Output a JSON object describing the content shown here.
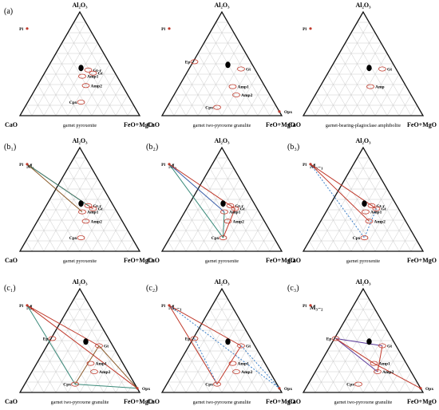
{
  "figure": {
    "vertex_top": "Al₂O₃",
    "vertex_left": "CaO",
    "vertex_right": "FeO+MgO",
    "panels": [
      {
        "id": "a1",
        "row_label": "(a)",
        "subtitle": "",
        "title": "garnet pyroxenite",
        "points": [
          {
            "label": "Pl",
            "u": 0.06,
            "v": 0.84,
            "ell": false
          },
          {
            "label": "Gt-r",
            "u": 0.57,
            "v": 0.44,
            "ell": true
          },
          {
            "label": "Gt",
            "u": 0.61,
            "v": 0.41,
            "ell": true
          },
          {
            "label": "Amp1",
            "u": 0.52,
            "v": 0.38,
            "ell": true
          },
          {
            "label": "Amp2",
            "u": 0.55,
            "v": 0.29,
            "ell": true
          },
          {
            "label": "Cpx",
            "u": 0.51,
            "v": 0.13,
            "ell": true
          }
        ],
        "black_dot": {
          "u": 0.51,
          "v": 0.46
        },
        "lines": []
      },
      {
        "id": "a2",
        "row_label": "",
        "subtitle": "",
        "title": "garnet two-pyroxene granulite",
        "points": [
          {
            "label": "Pl",
            "u": 0.06,
            "v": 0.84,
            "ell": false
          },
          {
            "label": "Ep",
            "u": 0.27,
            "v": 0.52,
            "ell": true
          },
          {
            "label": "Gt",
            "u": 0.66,
            "v": 0.45,
            "ell": true
          },
          {
            "label": "Amp1",
            "u": 0.59,
            "v": 0.28,
            "ell": true
          },
          {
            "label": "Amp2",
            "u": 0.62,
            "v": 0.2,
            "ell": true
          },
          {
            "label": "Cpx",
            "u": 0.46,
            "v": 0.08,
            "ell": true
          },
          {
            "label": "Opx",
            "u": 0.98,
            "v": 0.04,
            "ell": false
          }
        ],
        "black_dot": {
          "u": 0.55,
          "v": 0.49
        },
        "lines": []
      },
      {
        "id": "a3",
        "row_label": "",
        "subtitle": "",
        "title": "garnet-bearing-plagioclase amphibolite",
        "points": [
          {
            "label": "Pl",
            "u": 0.06,
            "v": 0.84,
            "ell": false
          },
          {
            "label": "Gt",
            "u": 0.66,
            "v": 0.45,
            "ell": true
          },
          {
            "label": "Amp",
            "u": 0.56,
            "v": 0.28,
            "ell": true
          }
        ],
        "black_dot": {
          "u": 0.55,
          "v": 0.46
        },
        "lines": []
      },
      {
        "id": "b1",
        "row_label": "(b₁)",
        "subtitle": "M₁",
        "title": "garnet pyroxenite",
        "points": [
          {
            "label": "Pl",
            "u": 0.06,
            "v": 0.84,
            "ell": false
          },
          {
            "label": "Gt-r",
            "u": 0.57,
            "v": 0.44,
            "ell": true
          },
          {
            "label": "Gt",
            "u": 0.61,
            "v": 0.41,
            "ell": true
          },
          {
            "label": "Amp1",
            "u": 0.52,
            "v": 0.38,
            "ell": true
          },
          {
            "label": "Amp2",
            "u": 0.55,
            "v": 0.29,
            "ell": true
          },
          {
            "label": "Cpx",
            "u": 0.51,
            "v": 0.13,
            "ell": true
          }
        ],
        "black_dot": {
          "u": 0.51,
          "v": 0.46
        },
        "lines": [
          {
            "from": "Pl",
            "to": "Gt",
            "color": "#c0392b",
            "dash": false
          },
          {
            "from": "Pl",
            "to": "Gt-r",
            "color": "#3a8a7a",
            "dash": false
          },
          {
            "from": "Pl",
            "to": "Amp1",
            "color": "#8a5a2a",
            "dash": false
          }
        ]
      },
      {
        "id": "b2",
        "row_label": "(b₂)",
        "subtitle": "M₂",
        "title": "garnet pyroxenite",
        "points": [
          {
            "label": "Pl",
            "u": 0.06,
            "v": 0.84,
            "ell": false
          },
          {
            "label": "Gt-r",
            "u": 0.57,
            "v": 0.44,
            "ell": true
          },
          {
            "label": "Gt",
            "u": 0.61,
            "v": 0.41,
            "ell": true
          },
          {
            "label": "Amp1",
            "u": 0.52,
            "v": 0.38,
            "ell": true
          },
          {
            "label": "Amp2",
            "u": 0.55,
            "v": 0.29,
            "ell": true
          },
          {
            "label": "Cpx",
            "u": 0.51,
            "v": 0.13,
            "ell": true
          }
        ],
        "black_dot": {
          "u": 0.51,
          "v": 0.46
        },
        "lines": [
          {
            "from": "Pl",
            "to": "Cpx",
            "color": "#3a8a7a",
            "dash": false
          },
          {
            "from": "Pl",
            "to": "Amp1",
            "color": "#3b5fa8",
            "dash": false
          },
          {
            "from": "Pl",
            "to": "Gt",
            "color": "#c0392b",
            "dash": false
          },
          {
            "from": "Gt",
            "to": "Cpx",
            "color": "#c0392b",
            "dash": false
          },
          {
            "from": "Amp1",
            "to": "Cpx",
            "color": "#3a8a7a",
            "dash": false
          }
        ]
      },
      {
        "id": "b3",
        "row_label": "(b₃)",
        "subtitle": "M₃₋₁",
        "title": "garnet pyroxenite",
        "points": [
          {
            "label": "Pl",
            "u": 0.06,
            "v": 0.84,
            "ell": false
          },
          {
            "label": "Gt-r",
            "u": 0.57,
            "v": 0.44,
            "ell": true
          },
          {
            "label": "Gt",
            "u": 0.61,
            "v": 0.41,
            "ell": true
          },
          {
            "label": "Amp1",
            "u": 0.52,
            "v": 0.38,
            "ell": true
          },
          {
            "label": "Amp2",
            "u": 0.55,
            "v": 0.29,
            "ell": true
          },
          {
            "label": "Cpx",
            "u": 0.51,
            "v": 0.13,
            "ell": true
          }
        ],
        "black_dot": {
          "u": 0.51,
          "v": 0.46
        },
        "lines": [
          {
            "from": "Pl",
            "to": "Gt",
            "color": "#c0392b",
            "dash": false
          },
          {
            "from": "Pl",
            "to": "Cpx",
            "color": "#3b7fc8",
            "dash": true
          },
          {
            "from": "Gt",
            "to": "Cpx",
            "color": "#3b7fc8",
            "dash": true
          },
          {
            "from": "Pl",
            "to": "Amp2",
            "color": "#c0392b",
            "dash": false
          }
        ]
      },
      {
        "id": "c1",
        "row_label": "(c₁)",
        "subtitle": "M₁",
        "title": "garnet two-pyroxene granulite",
        "points": [
          {
            "label": "Pl",
            "u": 0.06,
            "v": 0.84,
            "ell": false
          },
          {
            "label": "Ep",
            "u": 0.27,
            "v": 0.52,
            "ell": true
          },
          {
            "label": "Gt",
            "u": 0.66,
            "v": 0.45,
            "ell": true
          },
          {
            "label": "Amp1",
            "u": 0.59,
            "v": 0.28,
            "ell": true
          },
          {
            "label": "Amp2",
            "u": 0.62,
            "v": 0.2,
            "ell": true
          },
          {
            "label": "Cpx",
            "u": 0.46,
            "v": 0.08,
            "ell": true
          },
          {
            "label": "Opx",
            "u": 0.98,
            "v": 0.04,
            "ell": false
          }
        ],
        "black_dot": {
          "u": 0.55,
          "v": 0.49
        },
        "lines": [
          {
            "from": "Pl",
            "to": "Gt",
            "color": "#c0392b",
            "dash": false
          },
          {
            "from": "Pl",
            "to": "Opx",
            "color": "#c0392b",
            "dash": false
          },
          {
            "from": "Pl",
            "to": "Cpx",
            "color": "#3a8a7a",
            "dash": false
          },
          {
            "from": "Gt",
            "to": "Cpx",
            "color": "#8a5a2a",
            "dash": false
          },
          {
            "from": "Cpx",
            "to": "Opx",
            "color": "#3a8a7a",
            "dash": false
          },
          {
            "from": "Gt",
            "to": "Opx",
            "color": "#8a5a2a",
            "dash": false
          }
        ]
      },
      {
        "id": "c2",
        "row_label": "(c₂)",
        "subtitle": "M₃₋₁",
        "title": "garnet two-pyroxene granulite",
        "points": [
          {
            "label": "Pl",
            "u": 0.06,
            "v": 0.84,
            "ell": false
          },
          {
            "label": "Ep",
            "u": 0.27,
            "v": 0.52,
            "ell": true
          },
          {
            "label": "Gt",
            "u": 0.66,
            "v": 0.45,
            "ell": true
          },
          {
            "label": "Amp1",
            "u": 0.59,
            "v": 0.28,
            "ell": true
          },
          {
            "label": "Amp2",
            "u": 0.62,
            "v": 0.2,
            "ell": true
          },
          {
            "label": "Cpx",
            "u": 0.46,
            "v": 0.08,
            "ell": true
          },
          {
            "label": "Opx",
            "u": 0.98,
            "v": 0.04,
            "ell": false
          }
        ],
        "black_dot": {
          "u": 0.55,
          "v": 0.49
        },
        "lines": [
          {
            "from": "Pl",
            "to": "Gt",
            "color": "#c0392b",
            "dash": false
          },
          {
            "from": "Pl",
            "to": "Cpx",
            "color": "#c0392b",
            "dash": false
          },
          {
            "from": "Gt",
            "to": "Cpx",
            "color": "#c0392b",
            "dash": false
          },
          {
            "from": "Pl",
            "to": "Opx",
            "color": "#3b7fc8",
            "dash": true
          },
          {
            "from": "Ep",
            "to": "Cpx",
            "color": "#3b7fc8",
            "dash": true
          },
          {
            "from": "Gt",
            "to": "Opx",
            "color": "#3b7fc8",
            "dash": true
          }
        ]
      },
      {
        "id": "c3",
        "row_label": "(c₃)",
        "subtitle": "M₃₋₂",
        "title": "garnet two-pyroxene granulite",
        "points": [
          {
            "label": "Pl",
            "u": 0.06,
            "v": 0.84,
            "ell": false
          },
          {
            "label": "Ep",
            "u": 0.27,
            "v": 0.52,
            "ell": true
          },
          {
            "label": "Gt",
            "u": 0.66,
            "v": 0.45,
            "ell": true
          },
          {
            "label": "Amp1",
            "u": 0.59,
            "v": 0.28,
            "ell": true
          },
          {
            "label": "Amp2",
            "u": 0.62,
            "v": 0.2,
            "ell": true
          },
          {
            "label": "Cpx",
            "u": 0.46,
            "v": 0.08,
            "ell": true
          },
          {
            "label": "Opx",
            "u": 0.98,
            "v": 0.04,
            "ell": false
          }
        ],
        "black_dot": {
          "u": 0.55,
          "v": 0.49
        },
        "lines": [
          {
            "from": "Ep",
            "to": "Gt",
            "color": "#5b3a9a",
            "dash": false
          },
          {
            "from": "Ep",
            "to": "Amp2",
            "color": "#5b3a9a",
            "dash": false
          },
          {
            "from": "Ep",
            "to": "Amp1",
            "color": "#c0392b",
            "dash": false
          },
          {
            "from": "Gt",
            "to": "Amp2",
            "color": "#c0392b",
            "dash": false
          },
          {
            "from": "Amp1",
            "to": "Opx",
            "color": "#c0392b",
            "dash": false
          }
        ]
      }
    ]
  }
}
